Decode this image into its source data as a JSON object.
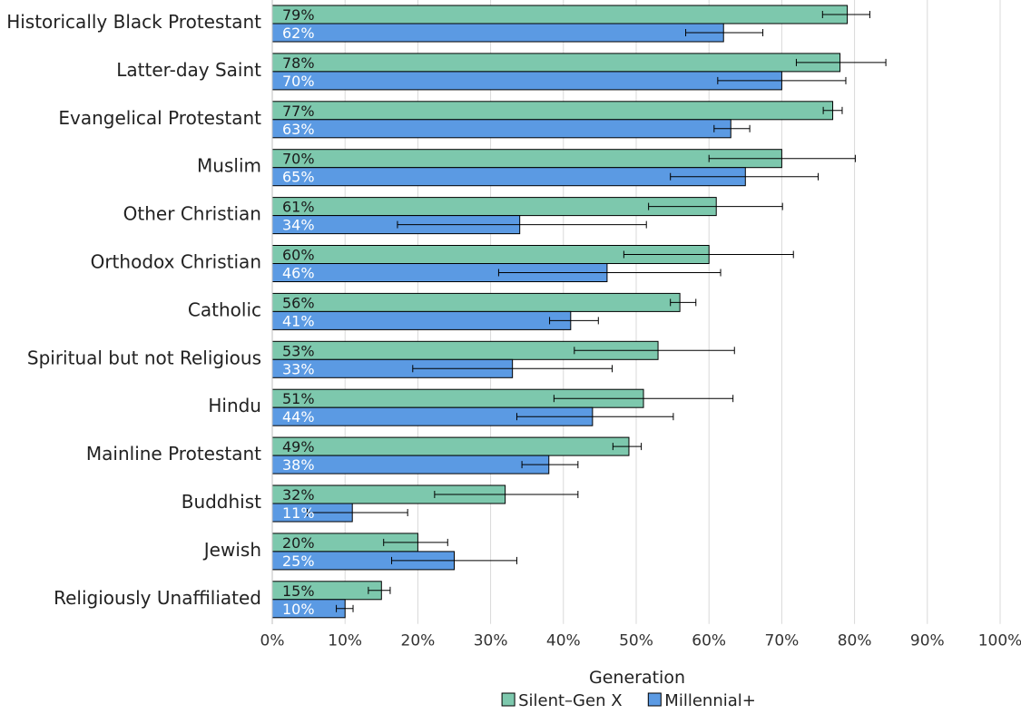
{
  "chart_data": {
    "type": "bar",
    "orientation": "horizontal",
    "categories": [
      "Historically Black Protestant",
      "Latter-day Saint",
      "Evangelical Protestant",
      "Muslim",
      "Other Christian",
      "Orthodox Christian",
      "Catholic",
      "Spiritual but not Religious",
      "Hindu",
      "Mainline Protestant",
      "Buddhist",
      "Jewish",
      "Religiously Unaffiliated"
    ],
    "series": [
      {
        "name": "Silent–Gen X",
        "color": "#7dc8ad",
        "values": [
          79,
          78,
          77,
          70,
          61,
          60,
          56,
          53,
          51,
          49,
          32,
          20,
          15
        ],
        "labels": [
          "79%",
          "78%",
          "77%",
          "70%",
          "61%",
          "60%",
          "56%",
          "53%",
          "51%",
          "49%",
          "32%",
          "20%",
          "15%"
        ],
        "label_color": "#1a1a1a",
        "error_low": [
          75.6,
          72,
          75.7,
          60,
          51.7,
          48.3,
          54.7,
          41.5,
          38.7,
          46.8,
          22.3,
          15.3,
          13.2
        ],
        "error_high": [
          82.1,
          84.3,
          78.3,
          80.1,
          70.1,
          71.6,
          58.2,
          63.5,
          63.3,
          50.7,
          42,
          24.1,
          16.2
        ]
      },
      {
        "name": "Millennial+",
        "color": "#5b9ae3",
        "values": [
          62,
          70,
          63,
          65,
          34,
          46,
          41,
          33,
          44,
          38,
          11,
          25,
          10
        ],
        "labels": [
          "62%",
          "70%",
          "63%",
          "65%",
          "34%",
          "46%",
          "41%",
          "33%",
          "44%",
          "38%",
          "11%",
          "25%",
          "10%"
        ],
        "label_color": "#ffffff",
        "error_low": [
          56.8,
          61.2,
          60.7,
          54.7,
          17.2,
          31.1,
          38.1,
          19.3,
          33.6,
          34.3,
          4.8,
          16.4,
          8.8
        ],
        "error_high": [
          67.4,
          78.8,
          65.6,
          75,
          51.4,
          61.6,
          44.8,
          46.7,
          55.1,
          42,
          18.6,
          33.6,
          11.1
        ]
      }
    ],
    "xlim": [
      0,
      100
    ],
    "xticks": [
      "0%",
      "10%",
      "20%",
      "30%",
      "40%",
      "50%",
      "60%",
      "70%",
      "80%",
      "90%",
      "100%"
    ],
    "xlabel": "Generation",
    "grid": true,
    "legend_position": "bottom"
  }
}
